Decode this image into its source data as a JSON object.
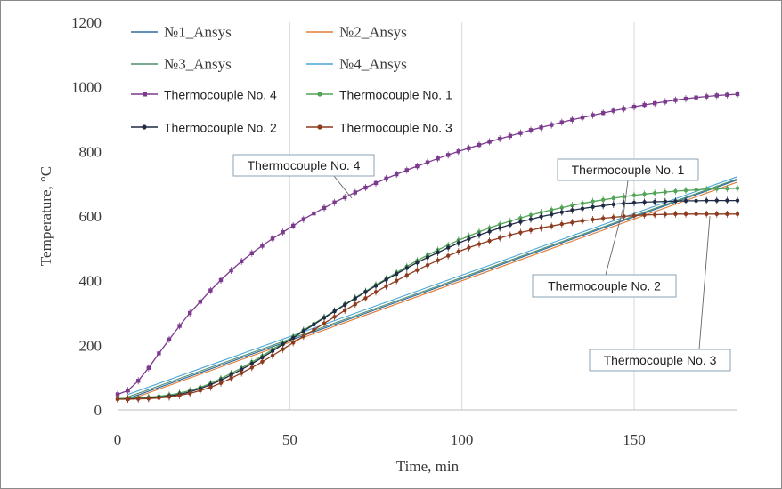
{
  "chart_data": {
    "type": "line",
    "title": "",
    "xlabel": "Time, min",
    "ylabel": "Temperature, °C",
    "xlim": [
      0,
      180
    ],
    "ylim": [
      0,
      1200
    ],
    "xticks": [
      0,
      50,
      100,
      150
    ],
    "yticks": [
      0,
      200,
      400,
      600,
      800,
      1000,
      1200
    ],
    "grid": "vertical",
    "legend_position": "top-left",
    "series": [
      {
        "name": "№1_Ansys",
        "color": "#2e6a9e",
        "marker": "none",
        "x": [
          3,
          180
        ],
        "y": [
          35,
          712
        ]
      },
      {
        "name": "№2_Ansys",
        "color": "#e07b39",
        "marker": "none",
        "x": [
          3,
          180
        ],
        "y": [
          30,
          705
        ]
      },
      {
        "name": "№3_Ansys",
        "color": "#4f8f6c",
        "marker": "none",
        "x": [
          3,
          180
        ],
        "y": [
          40,
          715
        ]
      },
      {
        "name": "№4_Ansys",
        "color": "#4aa6d6",
        "marker": "none",
        "x": [
          3,
          180
        ],
        "y": [
          48,
          722
        ]
      },
      {
        "name": "Thermocouple No. 4",
        "color": "#7b3a8d",
        "marker": "square",
        "x": [
          0,
          3,
          6,
          9,
          12,
          15,
          18,
          21,
          24,
          27,
          30,
          33,
          36,
          39,
          42,
          45,
          48,
          51,
          54,
          57,
          60,
          63,
          66,
          69,
          72,
          75,
          78,
          81,
          84,
          87,
          90,
          93,
          96,
          99,
          102,
          105,
          108,
          111,
          114,
          117,
          120,
          123,
          126,
          129,
          132,
          135,
          138,
          141,
          144,
          147,
          150,
          153,
          156,
          159,
          162,
          165,
          168,
          171,
          174,
          177,
          180
        ],
        "y": [
          48,
          60,
          90,
          130,
          175,
          218,
          260,
          300,
          335,
          370,
          402,
          432,
          460,
          485,
          508,
          530,
          550,
          570,
          590,
          608,
          625,
          642,
          658,
          673,
          688,
          702,
          716,
          729,
          742,
          754,
          766,
          778,
          789,
          800,
          810,
          820,
          830,
          839,
          848,
          857,
          866,
          874,
          882,
          890,
          898,
          905,
          912,
          919,
          926,
          932,
          938,
          944,
          949,
          954,
          959,
          963,
          967,
          970,
          973,
          975,
          977
        ]
      },
      {
        "name": "Thermocouple No. 1",
        "color": "#52a457",
        "marker": "circle",
        "x": [
          0,
          3,
          6,
          9,
          12,
          15,
          18,
          21,
          24,
          27,
          30,
          33,
          36,
          39,
          42,
          45,
          48,
          51,
          54,
          57,
          60,
          63,
          66,
          69,
          72,
          75,
          78,
          81,
          84,
          87,
          90,
          93,
          96,
          99,
          102,
          105,
          108,
          111,
          114,
          117,
          120,
          123,
          126,
          129,
          132,
          135,
          138,
          141,
          144,
          147,
          150,
          153,
          156,
          159,
          162,
          165,
          168,
          171,
          174,
          177,
          180
        ],
        "y": [
          35,
          36,
          37,
          39,
          42,
          46,
          52,
          60,
          70,
          82,
          97,
          113,
          130,
          148,
          167,
          187,
          207,
          227,
          247,
          267,
          287,
          307,
          327,
          347,
          367,
          387,
          406,
          425,
          444,
          462,
          479,
          495,
          510,
          525,
          538,
          551,
          563,
          574,
          584,
          594,
          603,
          611,
          619,
          626,
          633,
          639,
          645,
          650,
          655,
          660,
          664,
          668,
          671,
          674,
          677,
          679,
          681,
          683,
          684,
          685,
          686
        ]
      },
      {
        "name": "Thermocouple No. 2",
        "color": "#1f2a44",
        "marker": "circle",
        "x": [
          0,
          3,
          6,
          9,
          12,
          15,
          18,
          21,
          24,
          27,
          30,
          33,
          36,
          39,
          42,
          45,
          48,
          51,
          54,
          57,
          60,
          63,
          66,
          69,
          72,
          75,
          78,
          81,
          84,
          87,
          90,
          93,
          96,
          99,
          102,
          105,
          108,
          111,
          114,
          117,
          120,
          123,
          126,
          129,
          132,
          135,
          138,
          141,
          144,
          147,
          150,
          153,
          156,
          159,
          162,
          165,
          168,
          171,
          174,
          177,
          180
        ],
        "y": [
          33,
          34,
          35,
          36,
          39,
          43,
          48,
          56,
          66,
          78,
          92,
          108,
          125,
          143,
          162,
          182,
          203,
          223,
          244,
          264,
          285,
          305,
          325,
          345,
          365,
          384,
          403,
          421,
          439,
          456,
          472,
          487,
          502,
          516,
          529,
          541,
          552,
          563,
          573,
          582,
          590,
          598,
          605,
          612,
          618,
          623,
          628,
          632,
          636,
          639,
          641,
          643,
          644,
          645,
          646,
          647,
          647,
          648,
          648,
          648,
          648
        ]
      },
      {
        "name": "Thermocouple No. 3",
        "color": "#8e3a1e",
        "marker": "circle",
        "x": [
          0,
          3,
          6,
          9,
          12,
          15,
          18,
          21,
          24,
          27,
          30,
          33,
          36,
          39,
          42,
          45,
          48,
          51,
          54,
          57,
          60,
          63,
          66,
          69,
          72,
          75,
          78,
          81,
          84,
          87,
          90,
          93,
          96,
          99,
          102,
          105,
          108,
          111,
          114,
          117,
          120,
          123,
          126,
          129,
          132,
          135,
          138,
          141,
          144,
          147,
          150,
          153,
          156,
          159,
          162,
          165,
          168,
          171,
          174,
          177,
          180
        ],
        "y": [
          33,
          33,
          34,
          35,
          37,
          40,
          45,
          51,
          60,
          70,
          83,
          98,
          114,
          131,
          149,
          168,
          188,
          208,
          228,
          248,
          268,
          288,
          308,
          327,
          346,
          365,
          383,
          400,
          417,
          433,
          448,
          463,
          477,
          490,
          502,
          513,
          523,
          532,
          541,
          549,
          556,
          563,
          569,
          575,
          580,
          585,
          589,
          593,
          596,
          599,
          601,
          603,
          604,
          605,
          606,
          606,
          606,
          606,
          606,
          606,
          606
        ]
      }
    ],
    "annotations": [
      {
        "text": "Thermocouple No. 4",
        "points_to": {
          "x": 68,
          "y": 655
        }
      },
      {
        "text": "Thermocouple No. 1",
        "points_to": {
          "x": 147,
          "y": 612
        }
      },
      {
        "text": "Thermocouple No. 2",
        "points_to": {
          "x": 147,
          "y": 632
        }
      },
      {
        "text": "Thermocouple No. 3",
        "points_to": {
          "x": 172,
          "y": 600
        }
      }
    ]
  }
}
